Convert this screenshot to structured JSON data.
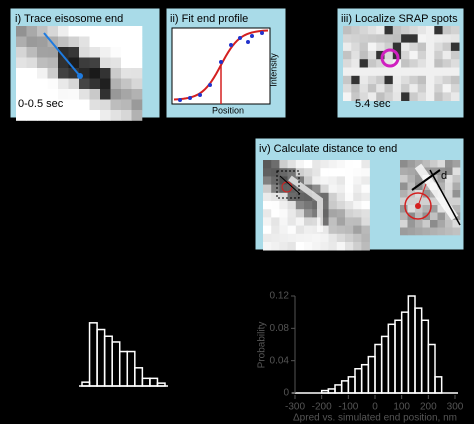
{
  "panels": [
    {
      "title": "i) Trace eisosome end",
      "label": "0-0.5 sec"
    },
    {
      "title": "ii) Fit end profile",
      "xlabel": "Position",
      "ylabel": "Intensity"
    },
    {
      "title": "iii) Localize SRAP spots",
      "label": "5.4 sec"
    },
    {
      "title": "iv) Calculate distance to end",
      "label": "d"
    }
  ],
  "histograms": [
    {
      "type": "histogram",
      "bins": [
        -5,
        0,
        5,
        10,
        15,
        20,
        25,
        30,
        35,
        40,
        45,
        50
      ],
      "values": [
        4,
        66,
        59,
        52,
        46,
        36,
        36,
        19,
        8,
        8,
        3
      ],
      "ylim": [
        0,
        70
      ],
      "xlim": [
        -5,
        50
      ]
    },
    {
      "type": "histogram",
      "ylabel": "Probability",
      "xlabel": "Δpred vs. simulated end position, nm",
      "bins": [
        -200,
        -175,
        -150,
        -125,
        -100,
        -75,
        -50,
        -25,
        0,
        25,
        50,
        75,
        100,
        125,
        150,
        175,
        200,
        225,
        250
      ],
      "values": [
        0.003,
        0.005,
        0.01,
        0.015,
        0.02,
        0.03,
        0.035,
        0.045,
        0.06,
        0.07,
        0.085,
        0.09,
        0.1,
        0.12,
        0.105,
        0.09,
        0.06,
        0.02
      ],
      "xlim": [
        -300,
        300
      ],
      "ylim": [
        0,
        0.12
      ],
      "xticks": [
        -300,
        -200,
        -100,
        0,
        100,
        200,
        300
      ],
      "yticks": [
        0,
        0.04,
        0.08,
        0.12
      ]
    }
  ]
}
